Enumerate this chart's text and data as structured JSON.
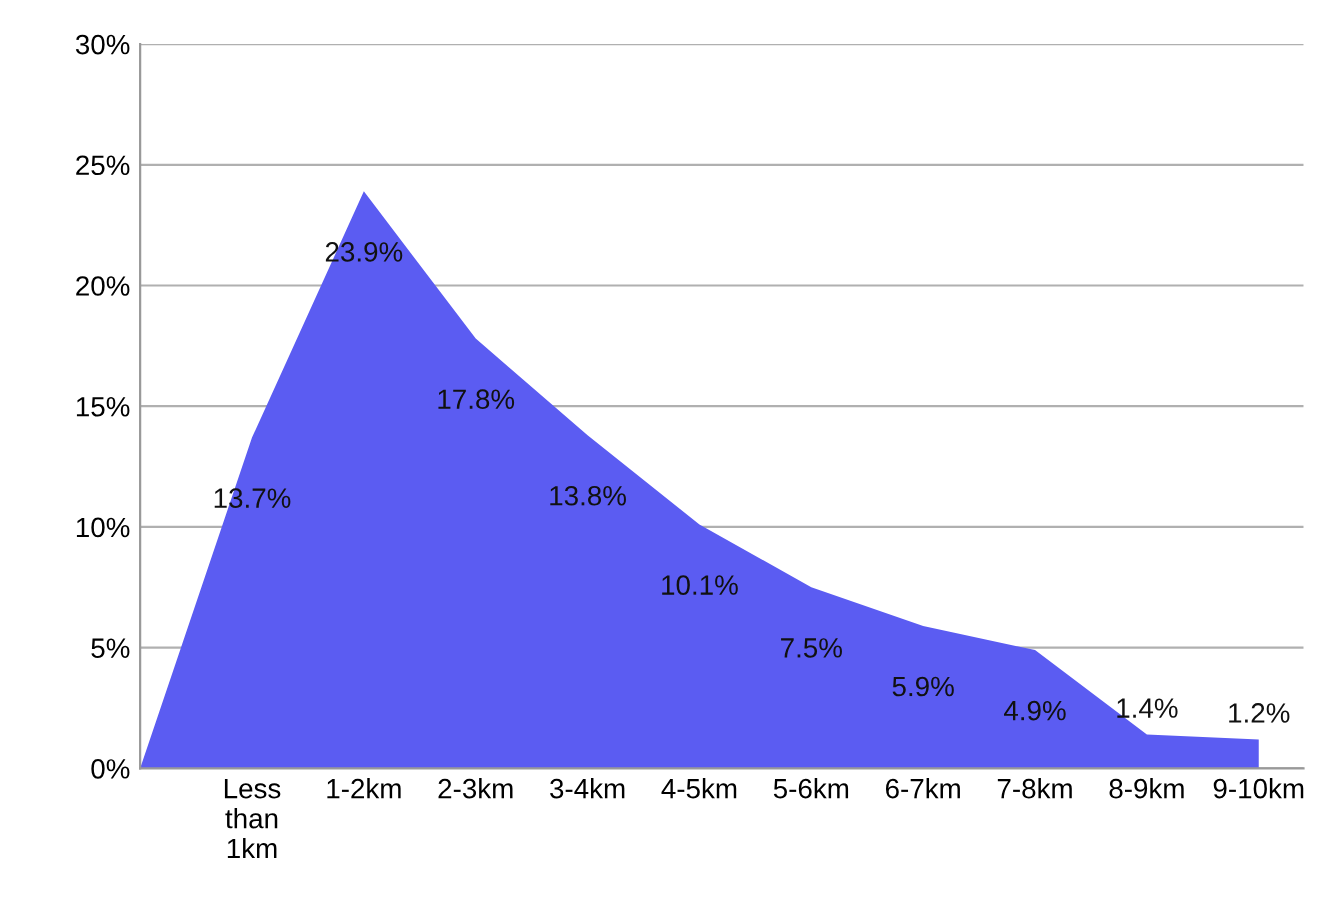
{
  "chart_data": {
    "type": "area",
    "categories": [
      null,
      "Less\nthan\n1km",
      "1-2km",
      "2-3km",
      "3-4km",
      "4-5km",
      "5-6km",
      "6-7km",
      "7-8km",
      "8-9km",
      "9-10km"
    ],
    "values": [
      0,
      13.7,
      23.9,
      17.8,
      13.8,
      10.1,
      7.5,
      5.9,
      4.9,
      1.4,
      1.2
    ],
    "value_labels": [
      null,
      "13.7%",
      "23.9%",
      "17.8%",
      "13.8%",
      "10.1%",
      "7.5%",
      "5.9%",
      "4.9%",
      "1.4%",
      "1.2%"
    ],
    "color": "#5b5cf2",
    "ylim": [
      0,
      30
    ],
    "yticks": [
      {
        "value": 0,
        "label": "0%"
      },
      {
        "value": 5,
        "label": "5%"
      },
      {
        "value": 10,
        "label": "10%"
      },
      {
        "value": 15,
        "label": "15%"
      },
      {
        "value": 20,
        "label": "20%"
      },
      {
        "value": 25,
        "label": "25%"
      },
      {
        "value": 30,
        "label": "30%"
      }
    ],
    "grid": "y",
    "legend": false
  }
}
